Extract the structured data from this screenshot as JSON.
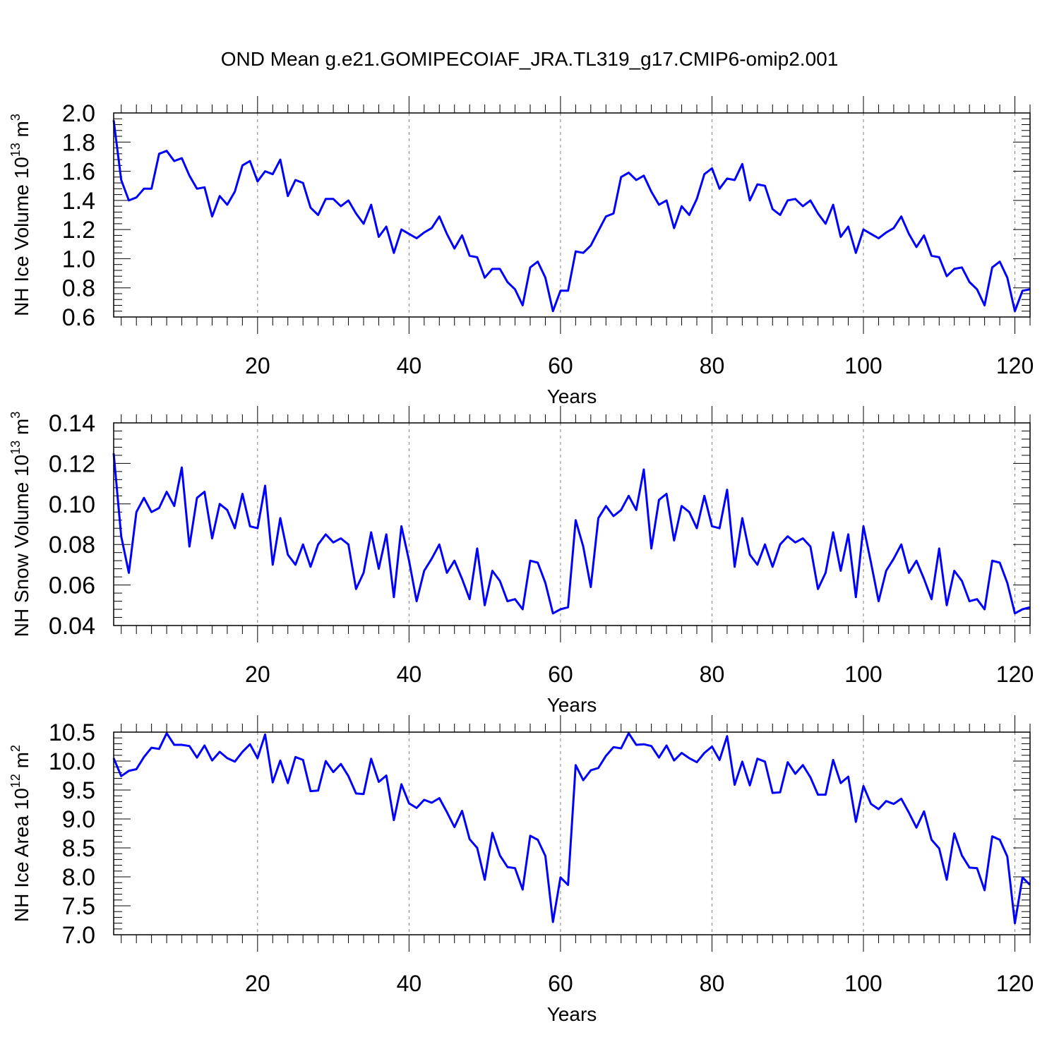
{
  "title": "OND Mean g.e21.GOMIPECOIAF_JRA.TL319_g17.CMIP6-omip2.001",
  "colors": {
    "line": "#0000ff",
    "axis": "#000000",
    "grid": "#808080"
  },
  "chart_data": [
    {
      "type": "line",
      "ylabel": "NH Ice Volume 10",
      "ylabel_exp": "13",
      "ylabel_unit": " m",
      "ylabel_unit_exp": "3",
      "xlabel": "Years",
      "xlim": [
        1,
        122
      ],
      "ylim": [
        0.6,
        2.0
      ],
      "xticks": [
        20,
        40,
        60,
        80,
        100,
        120
      ],
      "yticks": [
        0.6,
        0.8,
        1.0,
        1.2,
        1.4,
        1.6,
        1.8,
        2.0
      ],
      "ytick_labels": [
        "0.6",
        "0.8",
        "1.0",
        "1.2",
        "1.4",
        "1.6",
        "1.8",
        "2.0"
      ],
      "grid_x": true,
      "series": [
        {
          "name": "NH Ice Volume",
          "values": [
            1.95,
            1.54,
            1.4,
            1.42,
            1.48,
            1.48,
            1.72,
            1.74,
            1.67,
            1.69,
            1.57,
            1.48,
            1.49,
            1.29,
            1.43,
            1.37,
            1.46,
            1.64,
            1.67,
            1.53,
            1.6,
            1.58,
            1.68,
            1.43,
            1.54,
            1.52,
            1.35,
            1.3,
            1.41,
            1.41,
            1.36,
            1.4,
            1.31,
            1.24,
            1.37,
            1.15,
            1.22,
            1.04,
            1.2,
            1.17,
            1.14,
            1.18,
            1.21,
            1.29,
            1.17,
            1.07,
            1.16,
            1.02,
            1.01,
            0.87,
            0.93,
            0.93,
            0.84,
            0.79,
            0.68,
            0.94,
            0.98,
            0.87,
            0.64,
            0.78,
            0.78,
            1.05,
            1.04,
            1.09,
            1.19,
            1.29,
            1.31,
            1.56,
            1.59,
            1.54,
            1.57,
            1.46,
            1.37,
            1.4,
            1.21,
            1.36,
            1.3,
            1.41,
            1.58,
            1.62,
            1.48,
            1.55,
            1.54,
            1.65,
            1.4,
            1.51,
            1.5,
            1.34,
            1.3,
            1.4,
            1.41,
            1.36,
            1.4,
            1.31,
            1.24,
            1.37,
            1.15,
            1.22,
            1.04,
            1.2,
            1.17,
            1.14,
            1.18,
            1.21,
            1.29,
            1.17,
            1.08,
            1.16,
            1.02,
            1.01,
            0.88,
            0.93,
            0.94,
            0.84,
            0.79,
            0.68,
            0.94,
            0.98,
            0.87,
            0.64,
            0.78,
            0.79
          ]
        }
      ]
    },
    {
      "type": "line",
      "ylabel": "NH Snow Volume 10",
      "ylabel_exp": "13",
      "ylabel_unit": " m",
      "ylabel_unit_exp": "3",
      "xlabel": "Years",
      "xlim": [
        1,
        122
      ],
      "ylim": [
        0.04,
        0.14
      ],
      "xticks": [
        20,
        40,
        60,
        80,
        100,
        120
      ],
      "yticks": [
        0.04,
        0.06,
        0.08,
        0.1,
        0.12,
        0.14
      ],
      "ytick_labels": [
        "0.04",
        "0.06",
        "0.08",
        "0.10",
        "0.12",
        "0.14"
      ],
      "grid_x": true,
      "series": [
        {
          "name": "NH Snow Volume",
          "values": [
            0.125,
            0.084,
            0.066,
            0.096,
            0.103,
            0.096,
            0.098,
            0.106,
            0.099,
            0.118,
            0.079,
            0.103,
            0.106,
            0.083,
            0.1,
            0.097,
            0.088,
            0.105,
            0.089,
            0.088,
            0.109,
            0.07,
            0.093,
            0.075,
            0.07,
            0.08,
            0.069,
            0.08,
            0.085,
            0.081,
            0.083,
            0.08,
            0.058,
            0.066,
            0.086,
            0.068,
            0.085,
            0.054,
            0.089,
            0.072,
            0.052,
            0.067,
            0.073,
            0.08,
            0.066,
            0.072,
            0.063,
            0.053,
            0.078,
            0.05,
            0.067,
            0.062,
            0.052,
            0.053,
            0.048,
            0.072,
            0.071,
            0.061,
            0.046,
            0.048,
            0.049,
            0.092,
            0.079,
            0.059,
            0.093,
            0.099,
            0.094,
            0.097,
            0.104,
            0.097,
            0.117,
            0.078,
            0.102,
            0.105,
            0.082,
            0.099,
            0.096,
            0.088,
            0.104,
            0.089,
            0.088,
            0.107,
            0.069,
            0.093,
            0.075,
            0.07,
            0.08,
            0.069,
            0.08,
            0.084,
            0.081,
            0.083,
            0.079,
            0.058,
            0.066,
            0.086,
            0.067,
            0.085,
            0.054,
            0.089,
            0.071,
            0.052,
            0.067,
            0.073,
            0.08,
            0.066,
            0.072,
            0.063,
            0.053,
            0.078,
            0.05,
            0.067,
            0.062,
            0.052,
            0.053,
            0.048,
            0.072,
            0.071,
            0.061,
            0.046,
            0.048,
            0.049
          ]
        }
      ]
    },
    {
      "type": "line",
      "ylabel": "NH Ice Area 10",
      "ylabel_exp": "12",
      "ylabel_unit": " m",
      "ylabel_unit_exp": "2",
      "xlabel": "Years",
      "xlim": [
        1,
        122
      ],
      "ylim": [
        7.0,
        10.5
      ],
      "xticks": [
        20,
        40,
        60,
        80,
        100,
        120
      ],
      "yticks": [
        7.0,
        7.5,
        8.0,
        8.5,
        9.0,
        9.5,
        10.0,
        10.5
      ],
      "ytick_labels": [
        "7.0",
        "7.5",
        "8.0",
        "8.5",
        "9.0",
        "9.5",
        "10.0",
        "10.5"
      ],
      "grid_x": true,
      "series": [
        {
          "name": "NH Ice Area",
          "values": [
            10.05,
            9.74,
            9.83,
            9.86,
            10.07,
            10.23,
            10.21,
            10.48,
            10.28,
            10.28,
            10.26,
            10.06,
            10.27,
            10.01,
            10.16,
            10.05,
            9.99,
            10.16,
            10.29,
            10.05,
            10.46,
            9.63,
            10.01,
            9.62,
            10.07,
            10.02,
            9.48,
            9.49,
            10.0,
            9.81,
            9.95,
            9.74,
            9.44,
            9.43,
            10.04,
            9.64,
            9.75,
            8.98,
            9.6,
            9.27,
            9.19,
            9.33,
            9.28,
            9.36,
            9.12,
            8.86,
            9.14,
            8.65,
            8.5,
            7.95,
            8.76,
            8.37,
            8.17,
            8.15,
            7.78,
            8.71,
            8.64,
            8.36,
            7.22,
            7.99,
            7.86,
            9.93,
            9.67,
            9.84,
            9.88,
            10.09,
            10.24,
            10.22,
            10.48,
            10.28,
            10.29,
            10.26,
            10.06,
            10.27,
            10.01,
            10.14,
            10.05,
            9.98,
            10.14,
            10.25,
            10.02,
            10.43,
            9.59,
            9.99,
            9.58,
            10.04,
            9.99,
            9.45,
            9.46,
            9.98,
            9.78,
            9.93,
            9.72,
            9.42,
            9.42,
            10.02,
            9.62,
            9.73,
            8.95,
            9.57,
            9.26,
            9.17,
            9.31,
            9.26,
            9.35,
            9.11,
            8.85,
            9.13,
            8.64,
            8.49,
            7.95,
            8.75,
            8.37,
            8.16,
            8.15,
            7.77,
            8.7,
            8.64,
            8.35,
            7.2,
            7.99,
            7.86
          ]
        }
      ]
    }
  ]
}
